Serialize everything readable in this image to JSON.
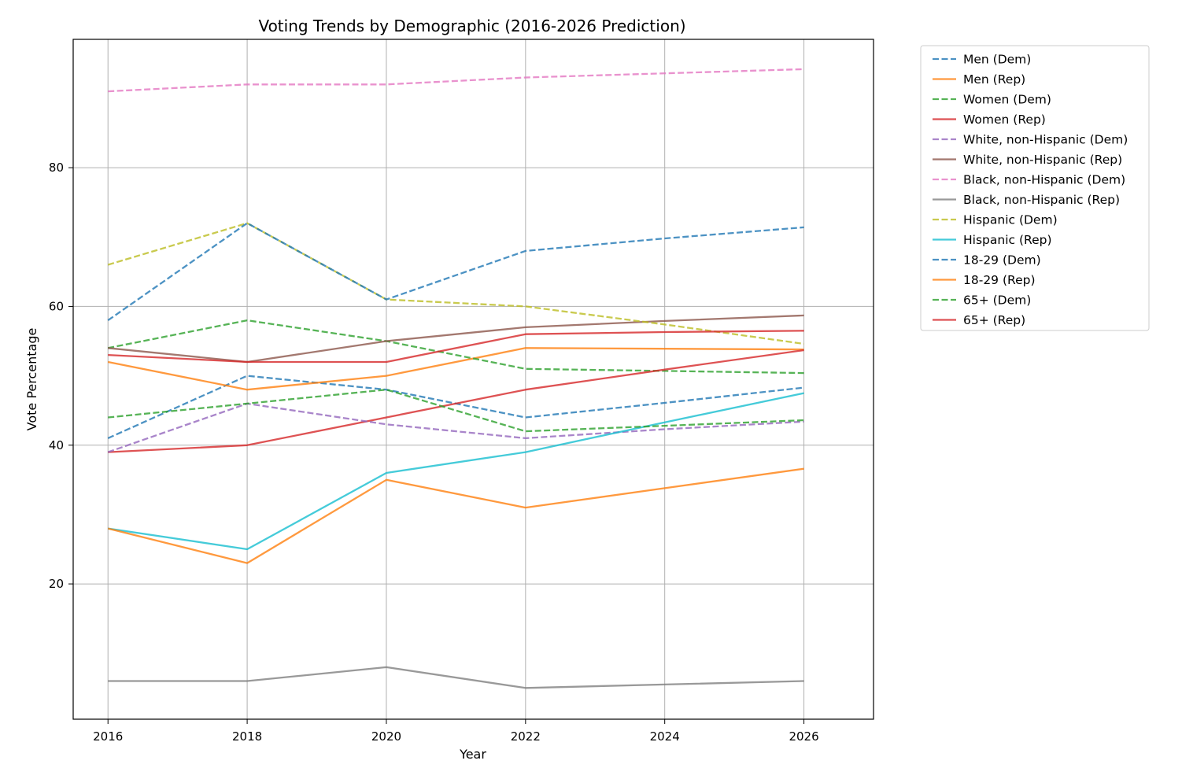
{
  "chart_data": {
    "type": "line",
    "title": "Voting Trends by Demographic (2016-2026 Prediction)",
    "xlabel": "Year",
    "ylabel": "Vote Percentage",
    "xlim": [
      2015.5,
      2027
    ],
    "ylim": [
      0.5,
      98.5
    ],
    "x_ticks": [
      2016,
      2018,
      2020,
      2022,
      2024,
      2026
    ],
    "y_ticks": [
      20,
      40,
      60,
      80
    ],
    "x_tick_labels": [
      "2016",
      "2018",
      "2020",
      "2022",
      "2024",
      "2026"
    ],
    "y_tick_labels": [
      "20",
      "40",
      "60",
      "80"
    ],
    "grid": true,
    "legend_position": "outside-right",
    "x": [
      2016,
      2018,
      2020,
      2022,
      2024,
      2026
    ],
    "series": [
      {
        "name": "Men (Dem)",
        "color": "#1f77b4",
        "dash": "dashed",
        "values": [
          41,
          50,
          48,
          44,
          46.1,
          48.3
        ]
      },
      {
        "name": "Men (Rep)",
        "color": "#ff7f0e",
        "dash": "solid",
        "values": [
          52,
          48,
          50,
          54,
          53.9,
          53.8
        ]
      },
      {
        "name": "Women (Dem)",
        "color": "#2ca02c",
        "dash": "dashed",
        "values": [
          54,
          58,
          55,
          51,
          50.7,
          50.4
        ]
      },
      {
        "name": "Women (Rep)",
        "color": "#d62728",
        "dash": "solid",
        "values": [
          39,
          40,
          44,
          48,
          50.9,
          53.7
        ]
      },
      {
        "name": "White, non-Hispanic (Dem)",
        "color": "#9467bd",
        "dash": "dashed",
        "values": [
          39,
          46,
          43,
          41,
          42.3,
          43.4
        ]
      },
      {
        "name": "White, non-Hispanic (Rep)",
        "color": "#8c564b",
        "dash": "solid",
        "values": [
          54,
          52,
          55,
          57,
          57.9,
          58.7
        ]
      },
      {
        "name": "Black, non-Hispanic (Dem)",
        "color": "#e377c2",
        "dash": "dashed",
        "values": [
          91,
          92,
          92,
          93,
          93.6,
          94.2
        ]
      },
      {
        "name": "Black, non-Hispanic (Rep)",
        "color": "#7f7f7f",
        "dash": "solid",
        "values": [
          6,
          6,
          8,
          5,
          5.5,
          6
        ]
      },
      {
        "name": "Hispanic (Dem)",
        "color": "#bcbd22",
        "dash": "dashed",
        "values": [
          66,
          72,
          61,
          60,
          57.4,
          54.6
        ]
      },
      {
        "name": "Hispanic (Rep)",
        "color": "#17becf",
        "dash": "solid",
        "values": [
          28,
          25,
          36,
          39,
          43.3,
          47.5
        ]
      },
      {
        "name": "18-29 (Dem)",
        "color": "#1f77b4",
        "dash": "dashed",
        "values": [
          58,
          72,
          61,
          68,
          69.8,
          71.4
        ]
      },
      {
        "name": "18-29 (Rep)",
        "color": "#ff7f0e",
        "dash": "solid",
        "values": [
          28,
          23,
          35,
          31,
          33.8,
          36.6
        ]
      },
      {
        "name": "65+ (Dem)",
        "color": "#2ca02c",
        "dash": "dashed",
        "values": [
          44,
          46,
          48,
          42,
          42.8,
          43.6
        ]
      },
      {
        "name": "65+ (Rep)",
        "color": "#d62728",
        "dash": "solid",
        "values": [
          53,
          52,
          52,
          56,
          56.3,
          56.5
        ]
      }
    ]
  }
}
